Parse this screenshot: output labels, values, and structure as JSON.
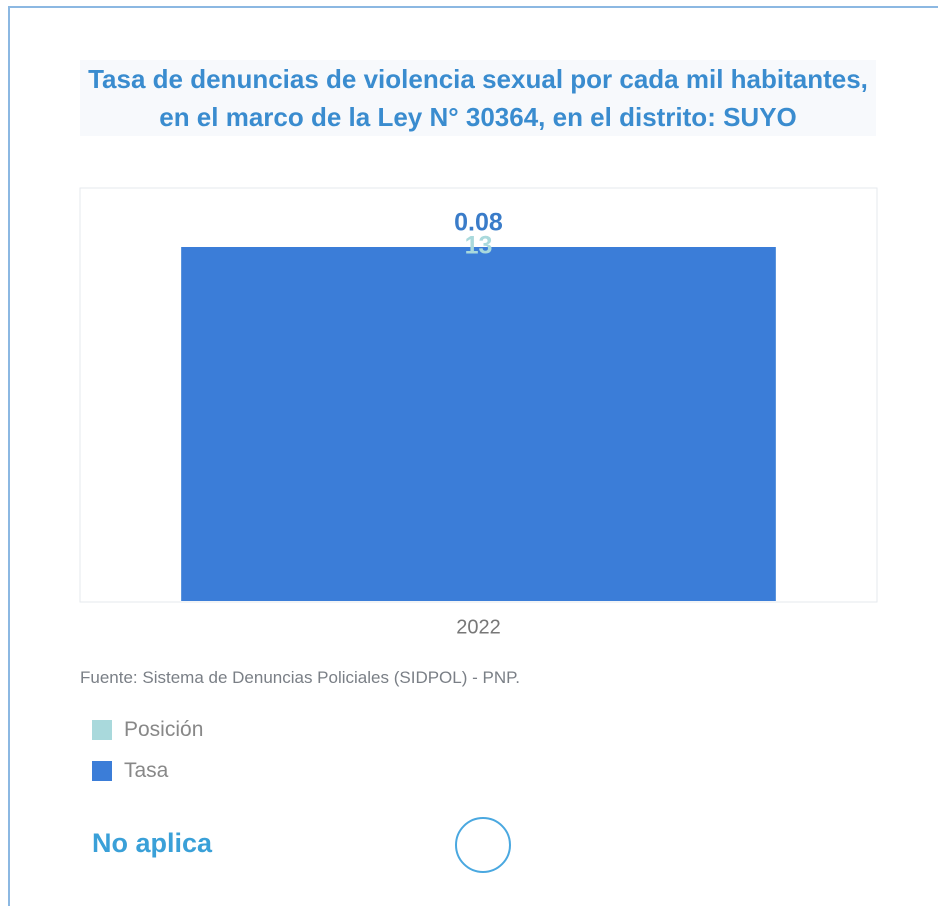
{
  "chart_data": {
    "type": "bar",
    "title": "Tasa de denuncias de violencia sexual por cada mil habitantes, en el marco de la Ley N° 30364, en el distrito: SUYO",
    "categories": [
      "2022"
    ],
    "series": [
      {
        "name": "Posición",
        "color": "#a9d9dc",
        "values": [
          13
        ]
      },
      {
        "name": "Tasa",
        "color": "#3b7dd8",
        "values": [
          0.08
        ]
      }
    ],
    "source": "Fuente: Sistema de Denuncias Policiales (SIDPOL) - PNP."
  },
  "status": "No aplica"
}
